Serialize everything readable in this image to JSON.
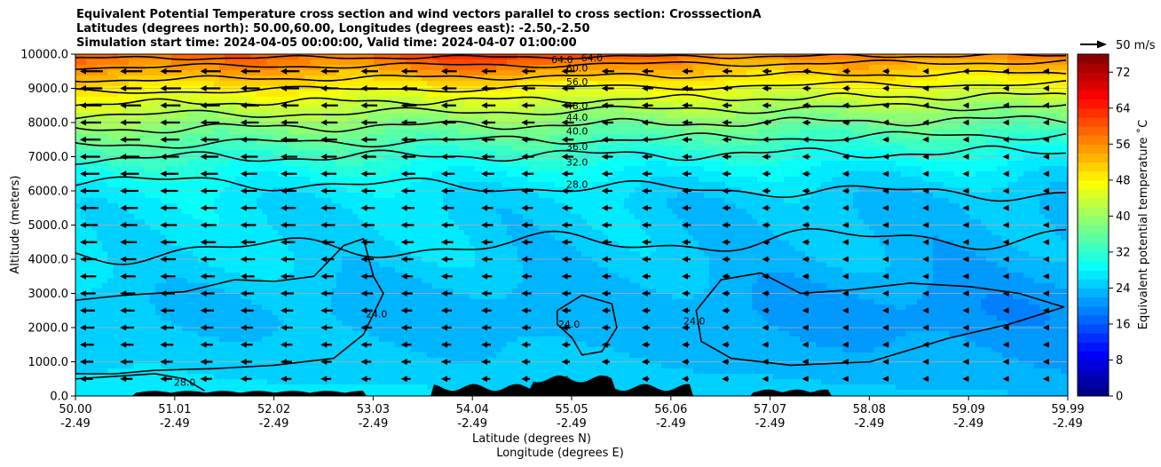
{
  "figure": {
    "title_lines": [
      "Equivalent Potential Temperature cross section and wind vectors parallel to cross section: CrosssectionA",
      "Latitudes (degrees north): 50.00,60.00, Longitudes (degrees east): -2.50,-2.50",
      "Simulation start time: 2024-04-05 00:00:00, Valid time: 2024-04-07 01:00:00"
    ],
    "quiver_key_label": "50 m/s"
  },
  "chart_data": {
    "type": "heatmap",
    "subtype": "filled contour cross section with wind vectors",
    "x_axis": {
      "label_line1": "Latitude (degrees N)",
      "label_line2": "Longitude (degrees E)",
      "ticks": [
        {
          "lat": "50.00",
          "lon": "-2.49"
        },
        {
          "lat": "51.01",
          "lon": "-2.49"
        },
        {
          "lat": "52.02",
          "lon": "-2.49"
        },
        {
          "lat": "53.03",
          "lon": "-2.49"
        },
        {
          "lat": "54.04",
          "lon": "-2.49"
        },
        {
          "lat": "55.05",
          "lon": "-2.49"
        },
        {
          "lat": "56.06",
          "lon": "-2.49"
        },
        {
          "lat": "57.07",
          "lon": "-2.49"
        },
        {
          "lat": "58.08",
          "lon": "-2.49"
        },
        {
          "lat": "59.09",
          "lon": "-2.49"
        },
        {
          "lat": "59.99",
          "lon": "-2.49"
        }
      ],
      "range": [
        50.0,
        59.99
      ]
    },
    "y_axis": {
      "label": "Altitude (meters)",
      "ticks": [
        "0.0",
        "1000.0",
        "2000.0",
        "3000.0",
        "4000.0",
        "5000.0",
        "6000.0",
        "7000.0",
        "8000.0",
        "9000.0",
        "10000.0"
      ],
      "range": [
        0,
        10000
      ],
      "grid": true
    },
    "colorbar": {
      "label": "Equivalent potential temperature  ˚C",
      "ticks": [
        "0",
        "8",
        "16",
        "24",
        "32",
        "40",
        "48",
        "56",
        "64",
        "72"
      ],
      "range": [
        0,
        76
      ],
      "colormap": "jet"
    },
    "contour_labels": [
      {
        "text": "24.0",
        "lat": 53.03,
        "alt": 2400
      },
      {
        "text": "24.0",
        "lat": 54.97,
        "alt": 2100
      },
      {
        "text": "24.0",
        "lat": 56.23,
        "alt": 2200
      },
      {
        "text": "28.0",
        "lat": 51.1,
        "alt": 400
      },
      {
        "text": "28.0",
        "lat": 55.05,
        "alt": 6200
      },
      {
        "text": "32.0",
        "lat": 55.05,
        "alt": 6850
      },
      {
        "text": "36.0",
        "lat": 55.05,
        "alt": 7300
      },
      {
        "text": "40.0",
        "lat": 55.05,
        "alt": 7750
      },
      {
        "text": "44.0",
        "lat": 55.05,
        "alt": 8150
      },
      {
        "text": "48.0",
        "lat": 55.05,
        "alt": 8500
      },
      {
        "text": "56.0",
        "lat": 55.05,
        "alt": 9200
      },
      {
        "text": "60.0",
        "lat": 55.05,
        "alt": 9600
      },
      {
        "text": "64.0",
        "lat": 54.9,
        "alt": 9850
      },
      {
        "text": "64.0",
        "lat": 55.2,
        "alt": 9900
      }
    ],
    "terrain_color": "#000000"
  }
}
